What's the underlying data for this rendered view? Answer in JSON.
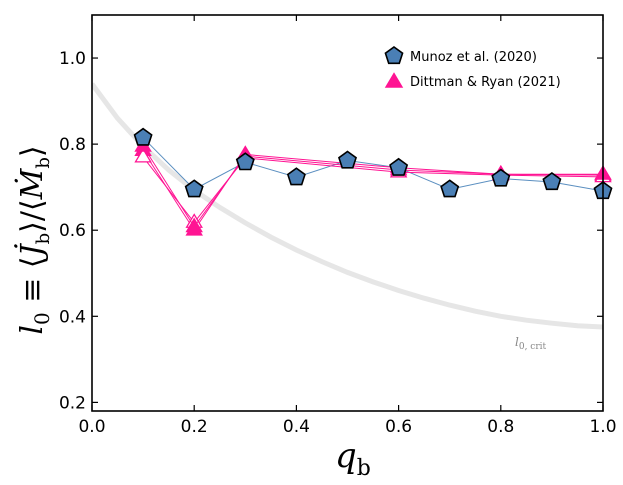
{
  "chart_data": {
    "type": "line",
    "xlabel": "q_b",
    "ylabel": "l_0 ≡ ⟨J̇_b⟩/⟨Ṁ_b⟩",
    "xlim": [
      0.0,
      1.0
    ],
    "ylim": [
      0.18,
      1.1
    ],
    "xticks": [
      "0.0",
      "0.2",
      "0.4",
      "0.6",
      "0.8",
      "1.0"
    ],
    "yticks": [
      "0.2",
      "0.4",
      "0.6",
      "0.8",
      "1.0"
    ],
    "legend_position": "top-right",
    "colors": {
      "munoz_fill": "#4a7fb5",
      "munoz_line": "#5b8fc0",
      "dittman": "#ff1493",
      "critical_curve": "#e6e6e6",
      "annotation": "#888888"
    },
    "series": [
      {
        "name": "Munoz et al. (2020)",
        "marker": "pentagon",
        "x": [
          0.1,
          0.2,
          0.3,
          0.4,
          0.5,
          0.6,
          0.7,
          0.8,
          0.9,
          1.0
        ],
        "y": [
          0.815,
          0.695,
          0.758,
          0.723,
          0.762,
          0.745,
          0.695,
          0.72,
          0.712,
          0.691
        ]
      },
      {
        "name": "Dittman & Ryan (2021)",
        "marker": "triangle",
        "runs": [
          {
            "x": [
              0.1,
              0.2,
              0.3,
              0.6,
              0.8,
              1.0
            ],
            "y": [
              0.785,
              0.6,
              0.776,
              0.745,
              0.73,
              0.728
            ],
            "filled": true
          },
          {
            "x": [
              0.1,
              0.2,
              0.3,
              0.6,
              0.8,
              1.0
            ],
            "y": [
              0.77,
              0.618,
              0.768,
              0.735,
              0.728,
              0.724
            ],
            "filled": false
          },
          {
            "x": [
              0.1,
              0.2,
              0.3,
              0.6,
              0.8,
              1.0
            ],
            "y": [
              0.795,
              0.608,
              0.772,
              0.74,
              0.73,
              0.73
            ],
            "filled": true
          }
        ]
      }
    ],
    "critical_curve": {
      "label": "l_{0, crit}",
      "x": [
        0.0,
        0.05,
        0.1,
        0.15,
        0.2,
        0.25,
        0.3,
        0.35,
        0.4,
        0.45,
        0.5,
        0.55,
        0.6,
        0.65,
        0.7,
        0.75,
        0.8,
        0.85,
        0.9,
        0.95,
        1.0
      ],
      "y": [
        0.94,
        0.86,
        0.795,
        0.74,
        0.693,
        0.653,
        0.617,
        0.584,
        0.554,
        0.527,
        0.502,
        0.48,
        0.46,
        0.442,
        0.426,
        0.412,
        0.4,
        0.391,
        0.384,
        0.378,
        0.375
      ]
    }
  }
}
